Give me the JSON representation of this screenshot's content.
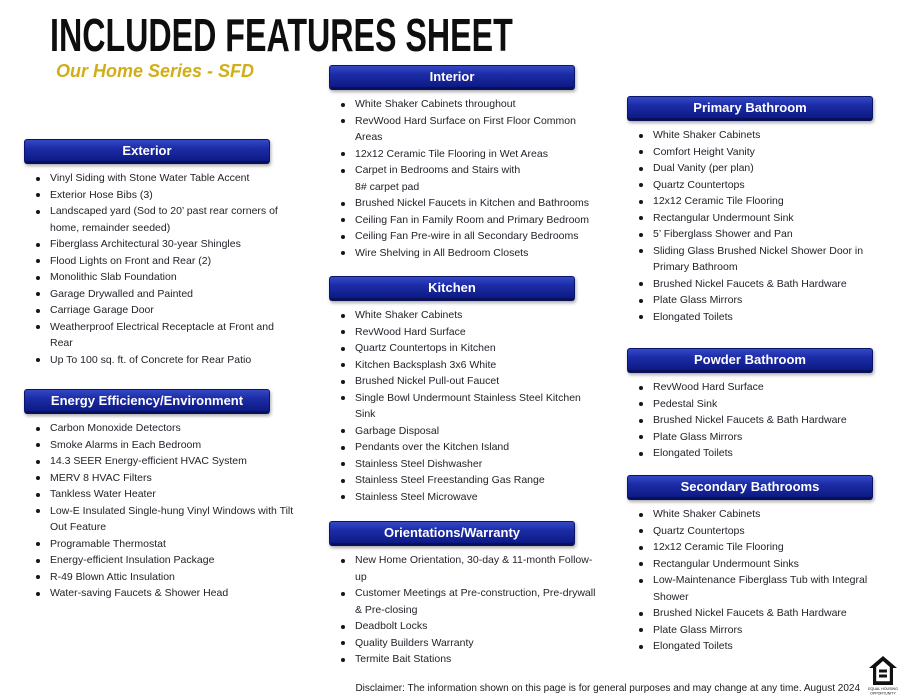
{
  "page": {
    "title": "INCLUDED FEATURES SHEET",
    "subtitle": "Our Home Series - SFD",
    "disclaimer": "Disclaimer: The information shown on this page is for general purposes and may change at any time. August 2024"
  },
  "colors": {
    "header_gradient_top": "#3448c6",
    "header_gradient_bottom": "#0d1a84",
    "header_border": "#0a1468",
    "header_text": "#ffffff",
    "subtitle_gold": "#d2ae16",
    "title_black": "#0e0e0e",
    "body_text": "#23232b"
  },
  "logo": {
    "name": "equal-housing-opportunity-icon",
    "caption_line1": "EQUAL HOUSING",
    "caption_line2": "OPPORTUNITY"
  },
  "columns": [
    {
      "sections": [
        {
          "title": "Exterior",
          "items": [
            "Vinyl Siding with Stone Water Table Accent",
            "Exterior Hose Bibs (3)",
            "Landscaped yard (Sod to 20’ past rear corners of home, remainder seeded)",
            "Fiberglass Architectural 30-year Shingles",
            "Flood Lights on Front and Rear (2)",
            "Monolithic Slab Foundation",
            "Garage Drywalled and Painted",
            "Carriage Garage Door",
            "Weatherproof Electrical Receptacle at Front and Rear",
            "Up To 100 sq. ft. of Concrete for Rear Patio"
          ]
        },
        {
          "title": "Energy Efficiency/Environment",
          "items": [
            "Carbon Monoxide Detectors",
            "Smoke Alarms in Each Bedroom",
            "14.3 SEER Energy-efficient HVAC System",
            "MERV 8 HVAC Filters",
            "Tankless Water Heater",
            "Low-E Insulated Single-hung Vinyl Windows with Tilt Out Feature",
            "Programable Thermostat",
            "Energy-efficient Insulation Package",
            "R-49 Blown Attic Insulation",
            "Water-saving Faucets & Shower Head"
          ]
        }
      ]
    },
    {
      "sections": [
        {
          "title": "Interior",
          "items": [
            "White Shaker Cabinets throughout",
            "RevWood Hard Surface on First Floor Common Areas",
            "12x12 Ceramic Tile Flooring in Wet Areas",
            "Carpet in Bedrooms and Stairs with\n8# carpet pad",
            "Brushed Nickel Faucets in Kitchen and Bathrooms",
            "Ceiling Fan in Family Room and Primary Bedroom",
            "Ceiling Fan Pre-wire in all Secondary Bedrooms",
            "Wire Shelving in All Bedroom Closets"
          ]
        },
        {
          "title": "Kitchen",
          "items": [
            "White Shaker Cabinets",
            "RevWood Hard Surface",
            "Quartz Countertops in Kitchen",
            "Kitchen Backsplash 3x6 White",
            "Brushed Nickel Pull-out Faucet",
            "Single Bowl Undermount Stainless Steel Kitchen Sink",
            "Garbage Disposal",
            "Pendants over the Kitchen Island",
            "Stainless Steel Dishwasher",
            "Stainless Steel Freestanding Gas Range",
            "Stainless Steel Microwave"
          ]
        },
        {
          "title": "Orientations/Warranty",
          "items": [
            "New Home Orientation, 30-day & 11-month Follow-up",
            "Customer Meetings at Pre-construction, Pre-drywall & Pre-closing",
            "Deadbolt Locks",
            "Quality Builders Warranty",
            "Termite Bait Stations"
          ]
        }
      ]
    },
    {
      "sections": [
        {
          "title": "Primary Bathroom",
          "items": [
            "White Shaker Cabinets",
            "Comfort Height Vanity",
            "Dual Vanity (per plan)",
            "Quartz Countertops",
            "12x12 Ceramic Tile Flooring",
            "Rectangular Undermount Sink",
            "5’ Fiberglass Shower and Pan",
            "Sliding Glass Brushed Nickel Shower Door in Primary Bathroom",
            "Brushed Nickel Faucets & Bath Hardware",
            "Plate Glass Mirrors",
            "Elongated Toilets"
          ]
        },
        {
          "title": "Powder Bathroom",
          "items": [
            "RevWood Hard Surface",
            "Pedestal Sink",
            "Brushed Nickel Faucets & Bath Hardware",
            "Plate Glass Mirrors",
            "Elongated Toilets"
          ]
        },
        {
          "title": "Secondary Bathrooms",
          "items": [
            "White Shaker Cabinets",
            "Quartz Countertops",
            "12x12 Ceramic Tile Flooring",
            "Rectangular Undermount Sinks",
            "Low-Maintenance Fiberglass Tub with Integral Shower",
            "Brushed Nickel Faucets & Bath Hardware",
            "Plate Glass Mirrors",
            "Elongated Toilets"
          ]
        }
      ]
    }
  ]
}
